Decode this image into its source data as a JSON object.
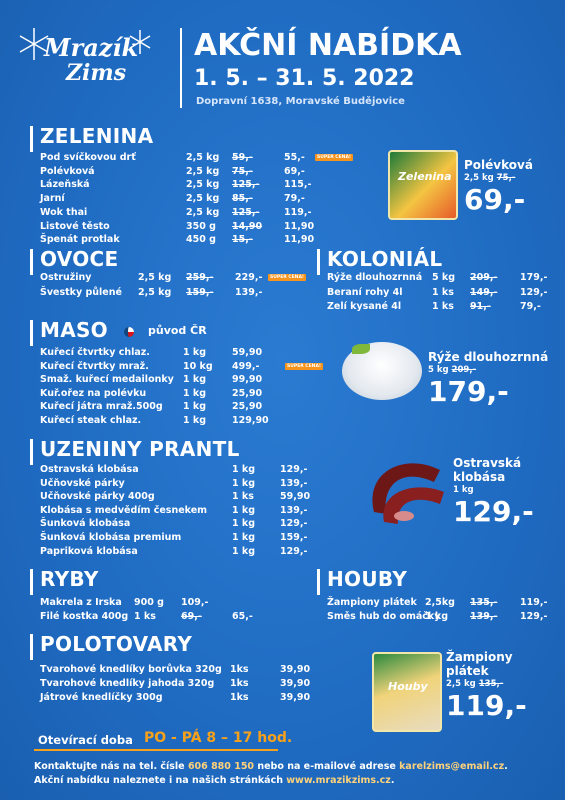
{
  "header": {
    "logo": [
      "Mrazík",
      "Zims"
    ],
    "title": "AKČNÍ NABÍDKA",
    "dates": "1. 5. – 31. 5. 2022",
    "address": "Dopravní 1638, Moravské Budějovice"
  },
  "sections": [
    {
      "title": "ZELENINA",
      "rows": [
        {
          "name": "Pod svíčkovou drť",
          "qty": "2,5 kg",
          "old": "59,-",
          "price": "55,-",
          "badge": "SUPER CENA!"
        },
        {
          "name": "Polévková",
          "qty": "2,5 kg",
          "old": "75,-",
          "price": "69,-"
        },
        {
          "name": "Lázeňská",
          "qty": "2,5 kg",
          "old": "125,-",
          "price": "115,-"
        },
        {
          "name": "Jarní",
          "qty": "2,5 kg",
          "old": "85,-",
          "price": "79,-"
        },
        {
          "name": "Wok thai",
          "qty": "2,5 kg",
          "old": "125,-",
          "price": "119,-"
        },
        {
          "name": "Listové těsto",
          "qty": "350 g",
          "old": "14,90",
          "price": "11,90"
        },
        {
          "name": "Špenát protlak",
          "qty": "450 g",
          "old": "15,-",
          "price": "11,90"
        }
      ]
    },
    {
      "title": "OVOCE",
      "rows": [
        {
          "name": "Ostružiny",
          "qty": "2,5 kg",
          "old": "259,-",
          "price": "229,-",
          "badge": "SUPER CENA!"
        },
        {
          "name": "Švestky půlené",
          "qty": "2,5 kg",
          "old": "159,-",
          "price": "139,-"
        }
      ]
    },
    {
      "title": "KOLONIÁL",
      "rows": [
        {
          "name": "Rýže dlouhozrnná",
          "qty": "5 kg",
          "old": "209,-",
          "price": "179,-"
        },
        {
          "name": "Beraní rohy 4l",
          "qty": "1 ks",
          "old": "149,-",
          "price": "129,-"
        },
        {
          "name": "Zelí kysané 4l",
          "qty": "1 ks",
          "old": "91,-",
          "price": "79,-"
        }
      ]
    },
    {
      "title": "MASO",
      "note": "původ ČR",
      "rows": [
        {
          "name": "Kuřecí čtvrtky chlaz.",
          "qty": "1 kg",
          "price": "59,90"
        },
        {
          "name": "Kuřecí čtvrtky mraž.",
          "qty": "10 kg",
          "price": "499,-",
          "badge": "SUPER CENA!"
        },
        {
          "name": "Smaž. kuřecí medailonky",
          "qty": "1 kg",
          "price": "99,90"
        },
        {
          "name": "Kuř.ořez na polévku",
          "qty": "1 kg",
          "price": "25,90"
        },
        {
          "name": "Kuřecí játra mraž.500g",
          "qty": "1 kg",
          "price": "25,90"
        },
        {
          "name": "Kuřecí steak chlaz.",
          "qty": "1 kg",
          "price": "129,90"
        }
      ]
    },
    {
      "title": "UZENINY PRANTL",
      "rows": [
        {
          "name": "Ostravská klobása",
          "qty": "1 kg",
          "price": "129,-"
        },
        {
          "name": "Učňovské párky",
          "qty": "1 kg",
          "price": "139,-"
        },
        {
          "name": "Učňovské párky 400g",
          "qty": "1 ks",
          "price": "59,90"
        },
        {
          "name": "Klobása s medvědím česnekem",
          "qty": "1 kg",
          "price": "139,-"
        },
        {
          "name": "Šunková klobása",
          "qty": "1 kg",
          "price": "129,-"
        },
        {
          "name": "Šunková klobása premium",
          "qty": "1 kg",
          "price": "159,-"
        },
        {
          "name": "Papriková klobása",
          "qty": "1 kg",
          "price": "129,-"
        }
      ]
    },
    {
      "title": "RYBY",
      "rows": [
        {
          "name": "Makrela z Irska",
          "qty": "900 g",
          "price": "109,-"
        },
        {
          "name": "Filé kostka 400g",
          "qty": "1 ks",
          "old": "69,-",
          "price": "65,-"
        }
      ]
    },
    {
      "title": "HOUBY",
      "rows": [
        {
          "name": "Žampiony plátek",
          "qty": "2,5kg",
          "old": "135,-",
          "price": "119,-"
        },
        {
          "name": "Směs hub do omáčky",
          "qty": "1 kg",
          "old": "139,-",
          "price": "129,-"
        }
      ]
    },
    {
      "title": "POLOTOVARY",
      "rows": [
        {
          "name": "Tvarohové knedlíky borůvka 320g",
          "qty": "1ks",
          "price": "39,90"
        },
        {
          "name": "Tvarohové knedlíky jahoda 320g",
          "qty": "1ks",
          "price": "39,90"
        },
        {
          "name": "Játrové knedlíčky 300g",
          "qty": "1ks",
          "price": "39,90"
        }
      ]
    }
  ],
  "promos": [
    {
      "package": "Zelenina",
      "name": "Polévková",
      "qty": "2,5 kg",
      "old": "75,-",
      "price": "69,-"
    },
    {
      "name": "Rýže dlouhozrnná",
      "qty": "5 kg",
      "old": "209,-",
      "price": "179,-"
    },
    {
      "name": "Ostravská klobása",
      "qty": "1 kg",
      "price": "129,-"
    },
    {
      "package": "Houby",
      "name": "Žampiony plátek",
      "qty": "2,5 kg",
      "old": "135,-",
      "price": "119,-"
    }
  ],
  "opening": {
    "label": "Otevírací doba",
    "hours": "PO - PÁ 8 – 17 hod."
  },
  "footer": [
    "Kontaktujte nás na tel. čísle ",
    "606 880 150",
    " nebo na e-mailové adrese ",
    "karelzims@email.cz",
    ". Akční nabídku naleznete i na našich stránkách ",
    "www.mrazikzims.cz",
    "."
  ]
}
